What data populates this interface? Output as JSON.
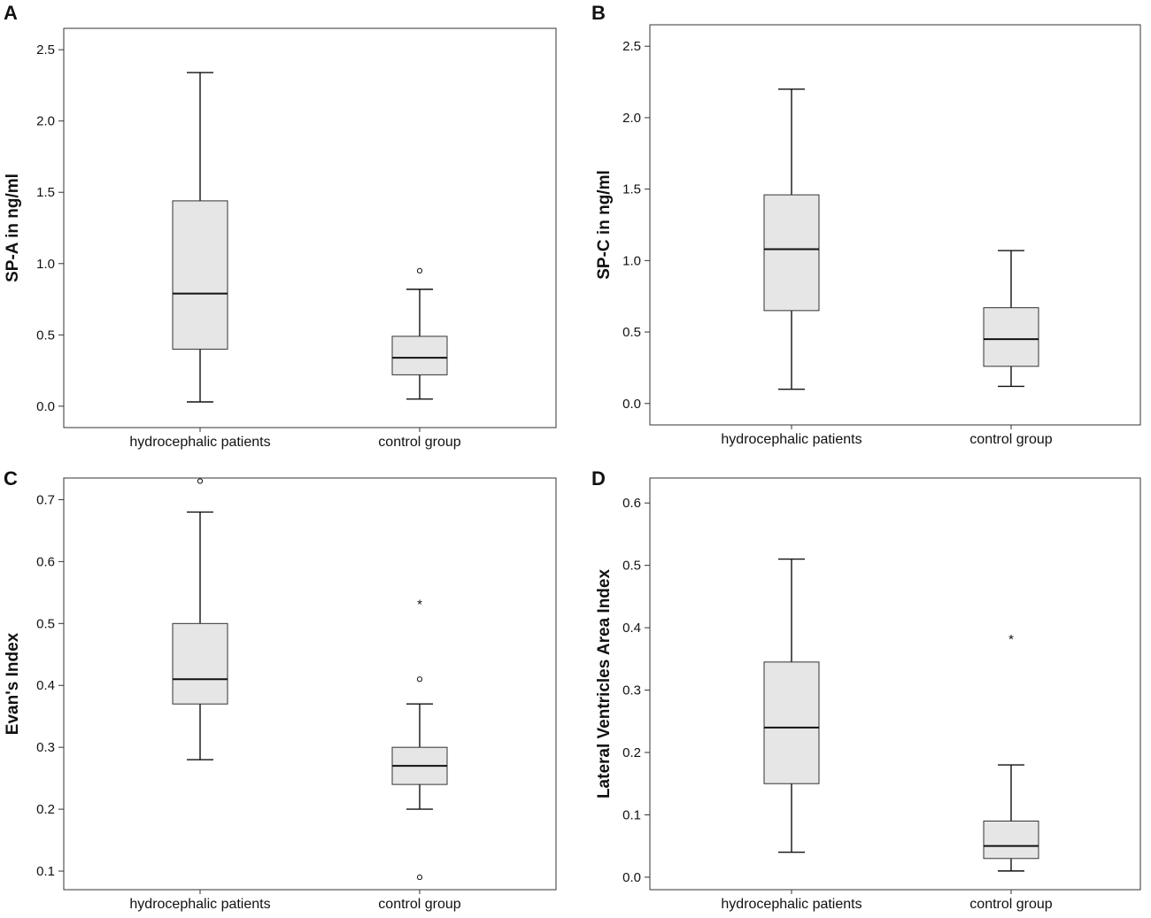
{
  "colors": {
    "box_fill": "#e6e6e6",
    "line": "#111111",
    "frame": "#333333",
    "background": "#ffffff"
  },
  "chart_data": [
    {
      "type": "boxplot",
      "panel": "A",
      "ylabel": "SP-A in ng/ml",
      "ylim": [
        -0.15,
        2.65
      ],
      "yticks": [
        0.0,
        0.5,
        1.0,
        1.5,
        2.0,
        2.5
      ],
      "tick_labels": [
        "0.0",
        "0.5",
        "1.0",
        "1.5",
        "2.0",
        "2.5"
      ],
      "categories": [
        "hydrocephalic patients",
        "control group"
      ],
      "series": [
        {
          "name": "hydrocephalic patients",
          "whisker_low": 0.03,
          "q1": 0.4,
          "median": 0.79,
          "q3": 1.44,
          "whisker_high": 2.34,
          "outliers": []
        },
        {
          "name": "control group",
          "whisker_low": 0.05,
          "q1": 0.22,
          "median": 0.34,
          "q3": 0.49,
          "whisker_high": 0.82,
          "outliers": [
            0.95
          ]
        }
      ]
    },
    {
      "type": "boxplot",
      "panel": "B",
      "ylabel": "SP-C in ng/ml",
      "ylim": [
        -0.15,
        2.65
      ],
      "yticks": [
        0.0,
        0.5,
        1.0,
        1.5,
        2.0,
        2.5
      ],
      "tick_labels": [
        "0.0",
        "0.5",
        "1.0",
        "1.5",
        "2.0",
        "2.5"
      ],
      "categories": [
        "hydrocephalic patients",
        "control group"
      ],
      "series": [
        {
          "name": "hydrocephalic patients",
          "whisker_low": 0.1,
          "q1": 0.65,
          "median": 1.08,
          "q3": 1.46,
          "whisker_high": 2.2,
          "outliers": []
        },
        {
          "name": "control group",
          "whisker_low": 0.12,
          "q1": 0.26,
          "median": 0.45,
          "q3": 0.67,
          "whisker_high": 1.07,
          "outliers": []
        }
      ]
    },
    {
      "type": "boxplot",
      "panel": "C",
      "ylabel": "Evan's Index",
      "ylim": [
        0.07,
        0.735
      ],
      "yticks": [
        0.1,
        0.2,
        0.3,
        0.4,
        0.5,
        0.6,
        0.7
      ],
      "tick_labels": [
        "0.1",
        "0.2",
        "0.3",
        "0.4",
        "0.5",
        "0.6",
        "0.7"
      ],
      "categories": [
        "hydrocephalic patients",
        "control group"
      ],
      "series": [
        {
          "name": "hydrocephalic patients",
          "whisker_low": 0.28,
          "q1": 0.37,
          "median": 0.41,
          "q3": 0.5,
          "whisker_high": 0.68,
          "outliers": [
            0.73
          ],
          "extremes": []
        },
        {
          "name": "control group",
          "whisker_low": 0.2,
          "q1": 0.24,
          "median": 0.27,
          "q3": 0.3,
          "whisker_high": 0.37,
          "outliers": [
            0.41,
            0.09
          ],
          "extremes": [
            0.53
          ]
        }
      ]
    },
    {
      "type": "boxplot",
      "panel": "D",
      "ylabel": "Lateral Ventricles Area Index",
      "ylim": [
        -0.02,
        0.64
      ],
      "yticks": [
        0.0,
        0.1,
        0.2,
        0.3,
        0.4,
        0.5,
        0.6
      ],
      "tick_labels": [
        "0.0",
        "0.1",
        "0.2",
        "0.3",
        "0.4",
        "0.5",
        "0.6"
      ],
      "categories": [
        "hydrocephalic patients",
        "control group"
      ],
      "series": [
        {
          "name": "hydrocephalic patients",
          "whisker_low": 0.04,
          "q1": 0.15,
          "median": 0.24,
          "q3": 0.345,
          "whisker_high": 0.51,
          "outliers": [],
          "extremes": []
        },
        {
          "name": "control group",
          "whisker_low": 0.01,
          "q1": 0.03,
          "median": 0.05,
          "q3": 0.09,
          "whisker_high": 0.18,
          "outliers": [],
          "extremes": [
            0.38
          ]
        }
      ]
    }
  ]
}
